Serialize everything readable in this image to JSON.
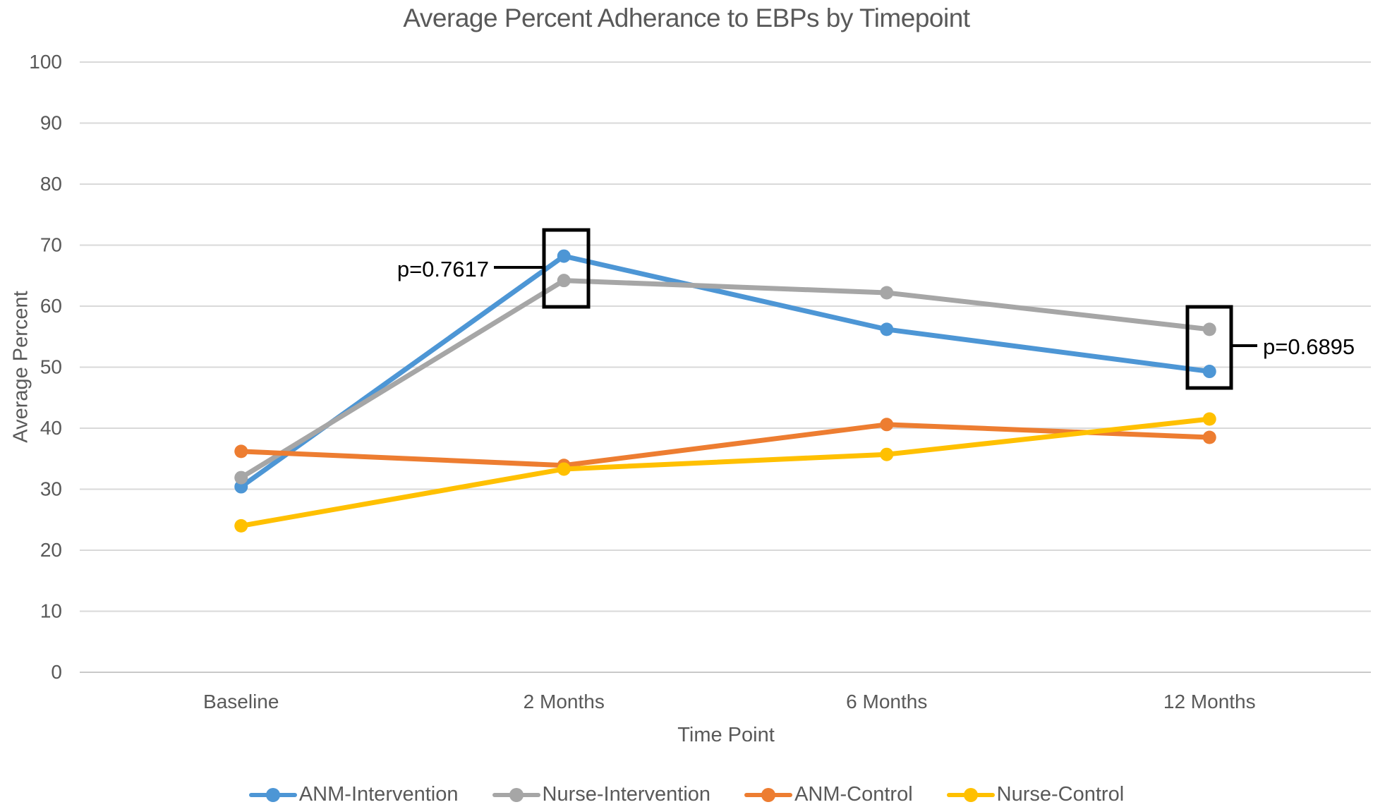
{
  "chart_data": {
    "type": "line",
    "title": "Average Percent Adherance to EBPs by Timepoint",
    "xlabel": "Time Point",
    "ylabel": "Average Percent",
    "categories": [
      "Baseline",
      "2 Months",
      "6 Months",
      "12 Months"
    ],
    "ylim": [
      0,
      100
    ],
    "y_tick_step": 10,
    "grid": true,
    "legend_position": "bottom",
    "series": [
      {
        "name": "ANM-Intervention",
        "color": "#4D96D5",
        "values": [
          30.4,
          68.2,
          56.2,
          49.3
        ]
      },
      {
        "name": "Nurse-Intervention",
        "color": "#A6A6A6",
        "values": [
          31.9,
          64.2,
          62.2,
          56.2
        ]
      },
      {
        "name": "ANM-Control",
        "color": "#ED7D31",
        "values": [
          36.2,
          33.9,
          40.6,
          38.5
        ]
      },
      {
        "name": "Nurse-Control",
        "color": "#FFC000",
        "values": [
          24.0,
          33.3,
          35.7,
          41.5
        ]
      }
    ],
    "annotations": [
      {
        "label": "p=0.7617",
        "at_category": "2 Months",
        "boxed_series": [
          "ANM-Intervention",
          "Nurse-Intervention"
        ],
        "text_side": "left"
      },
      {
        "label": "p=0.6895",
        "at_category": "12 Months",
        "boxed_series": [
          "Nurse-Intervention",
          "ANM-Intervention"
        ],
        "text_side": "right"
      }
    ]
  }
}
